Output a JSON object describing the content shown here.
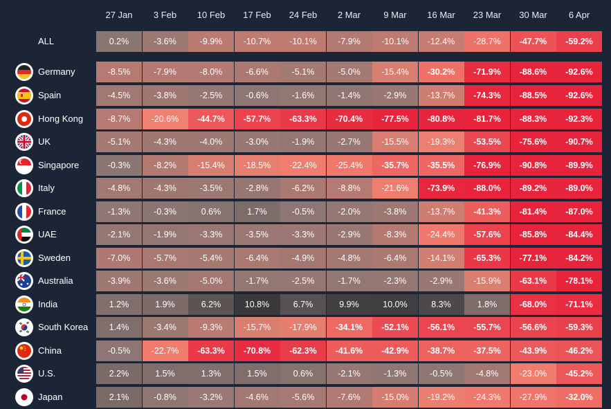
{
  "chart_data": {
    "type": "heatmap",
    "columns": [
      "27 Jan",
      "3 Feb",
      "10 Feb",
      "17 Feb",
      "24 Feb",
      "2 Mar",
      "9 Mar",
      "16 Mar",
      "23 Mar",
      "30 Mar",
      "6 Apr"
    ],
    "rows": [
      {
        "label": "ALL",
        "flag": "",
        "values": [
          "0.2%",
          "-3.6%",
          "-9.9%",
          "-10.7%",
          "-10.1%",
          "-7.9%",
          "-10.1%",
          "-12.4%",
          "-28.7%",
          "-47.7%",
          "-59.2%"
        ]
      },
      {
        "label": "Germany",
        "flag": "germany-flag-icon",
        "values": [
          "-8.5%",
          "-7.9%",
          "-8.0%",
          "-6.6%",
          "-5.1%",
          "-5.0%",
          "-15.4%",
          "-30.2%",
          "-71.9%",
          "-88.6%",
          "-92.6%"
        ]
      },
      {
        "label": "Spain",
        "flag": "spain-flag-icon",
        "values": [
          "-4.5%",
          "-3.8%",
          "-2.5%",
          "-0.6%",
          "-1.6%",
          "-1.4%",
          "-2.9%",
          "-13.7%",
          "-74.3%",
          "-88.5%",
          "-92.6%"
        ]
      },
      {
        "label": "Hong Kong",
        "flag": "hong-kong-flag-icon",
        "values": [
          "-8.7%",
          "-20.6%",
          "-44.7%",
          "-57.7%",
          "-63.3%",
          "-70.4%",
          "-77.5%",
          "-80.8%",
          "-81.7%",
          "-88.3%",
          "-92.3%"
        ]
      },
      {
        "label": "UK",
        "flag": "uk-flag-icon",
        "values": [
          "-5.1%",
          "-4.3%",
          "-4.0%",
          "-3.0%",
          "-1.9%",
          "-2.7%",
          "-15.5%",
          "-19.3%",
          "-53.5%",
          "-75.6%",
          "-90.7%"
        ]
      },
      {
        "label": "Singapore",
        "flag": "singapore-flag-icon",
        "values": [
          "-0.3%",
          "-8.2%",
          "-15.4%",
          "-18.5%",
          "-22.4%",
          "-25.4%",
          "-35.7%",
          "-35.5%",
          "-76.9%",
          "-90.8%",
          "-89.9%"
        ]
      },
      {
        "label": "Italy",
        "flag": "italy-flag-icon",
        "values": [
          "-4.8%",
          "-4.3%",
          "-3.5%",
          "-2.8%",
          "-6.2%",
          "-8.8%",
          "-21.6%",
          "-73.9%",
          "-88.0%",
          "-89.2%",
          "-89.0%"
        ]
      },
      {
        "label": "France",
        "flag": "france-flag-icon",
        "values": [
          "-1.3%",
          "-0.3%",
          "0.6%",
          "1.7%",
          "-0.5%",
          "-2.0%",
          "-3.8%",
          "-13.7%",
          "-41.3%",
          "-81.4%",
          "-87.0%"
        ]
      },
      {
        "label": "UAE",
        "flag": "uae-flag-icon",
        "values": [
          "-2.1%",
          "-1.9%",
          "-3.3%",
          "-3.5%",
          "-3.3%",
          "-2.9%",
          "-8.3%",
          "-24.4%",
          "-57.6%",
          "-85.8%",
          "-84.4%"
        ]
      },
      {
        "label": "Sweden",
        "flag": "sweden-flag-icon",
        "values": [
          "-7.0%",
          "-5.7%",
          "-5.4%",
          "-6.4%",
          "-4.9%",
          "-4.8%",
          "-6.4%",
          "-14.1%",
          "-65.3%",
          "-77.1%",
          "-84.2%"
        ]
      },
      {
        "label": "Australia",
        "flag": "australia-flag-icon",
        "values": [
          "-3.9%",
          "-3.6%",
          "-5.0%",
          "-1.7%",
          "-2.5%",
          "-1.7%",
          "-2.3%",
          "-2.9%",
          "-15.9%",
          "-63.1%",
          "-78.1%"
        ]
      },
      {
        "label": "India",
        "flag": "india-flag-icon",
        "values": [
          "1.2%",
          "1.9%",
          "6.2%",
          "10.8%",
          "6.7%",
          "9.9%",
          "10.0%",
          "8.3%",
          "1.8%",
          "-68.0%",
          "-71.1%"
        ]
      },
      {
        "label": "South Korea",
        "flag": "south-korea-flag-icon",
        "values": [
          "1.4%",
          "-3.4%",
          "-9.3%",
          "-15.7%",
          "-17.9%",
          "-34.1%",
          "-52.1%",
          "-56.1%",
          "-55.7%",
          "-56.6%",
          "-59.3%"
        ]
      },
      {
        "label": "China",
        "flag": "china-flag-icon",
        "values": [
          "-0.5%",
          "-22.7%",
          "-63.3%",
          "-70.8%",
          "-62.3%",
          "-41.6%",
          "-42.9%",
          "-38.7%",
          "-37.5%",
          "-43.9%",
          "-46.2%"
        ]
      },
      {
        "label": "U.S.",
        "flag": "us-flag-icon",
        "values": [
          "2.2%",
          "1.5%",
          "1.3%",
          "1.5%",
          "0.6%",
          "-2.1%",
          "-1.3%",
          "-0.5%",
          "-4.8%",
          "-23.0%",
          "-45.2%"
        ]
      },
      {
        "label": "Japan",
        "flag": "japan-flag-icon",
        "values": [
          "2.1%",
          "-0.8%",
          "-3.2%",
          "-4.6%",
          "-5.6%",
          "-7.6%",
          "-15.0%",
          "-19.2%",
          "-24.3%",
          "-27.9%",
          "-32.0%"
        ]
      }
    ],
    "color_scale": {
      "negative_max": "#e8243c",
      "near_zero": "#8a7673",
      "positive_max": "#3a3a3c"
    }
  }
}
